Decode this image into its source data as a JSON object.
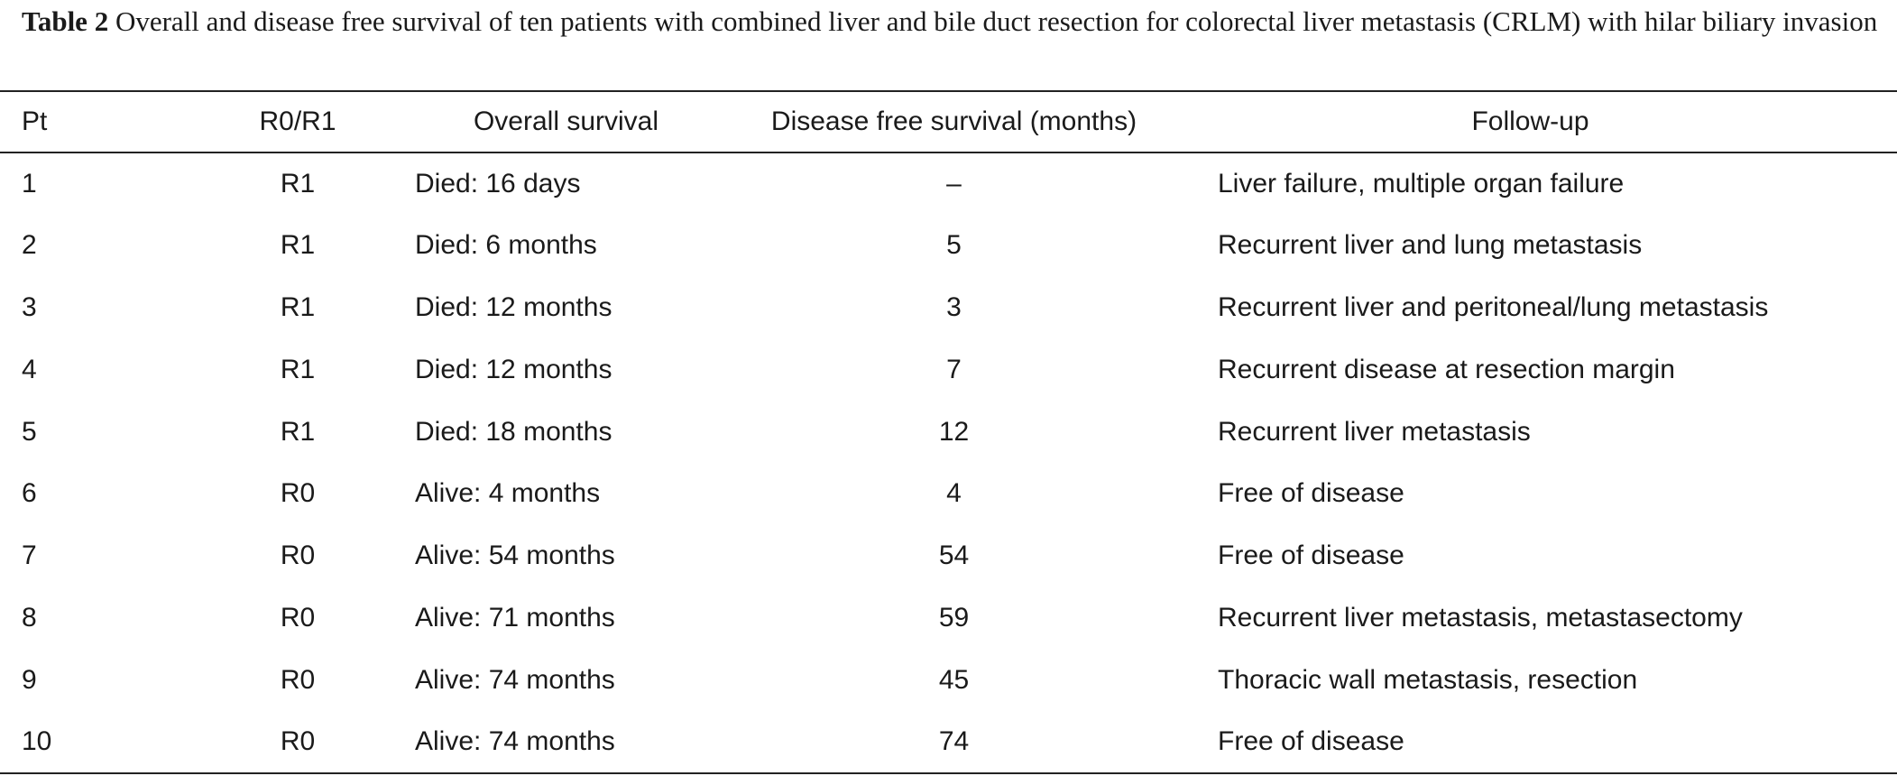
{
  "caption": {
    "label": "Table 2",
    "text": "Overall and disease free survival of ten patients with combined liver and bile duct resection for colorectal liver metastasis (CRLM) with hilar biliary invasion"
  },
  "columns": [
    "Pt",
    "R0/R1",
    "Overall survival",
    "Disease free survival (months)",
    "Follow-up"
  ],
  "rows": [
    {
      "pt": "1",
      "r": "R1",
      "os": "Died: 16 days",
      "dfs": "–",
      "followup": "Liver failure, multiple organ failure"
    },
    {
      "pt": "2",
      "r": "R1",
      "os": "Died: 6 months",
      "dfs": "5",
      "followup": "Recurrent liver and lung metastasis"
    },
    {
      "pt": "3",
      "r": "R1",
      "os": "Died: 12 months",
      "dfs": "3",
      "followup": "Recurrent liver and peritoneal/lung metastasis"
    },
    {
      "pt": "4",
      "r": "R1",
      "os": "Died: 12 months",
      "dfs": "7",
      "followup": "Recurrent disease at resection margin"
    },
    {
      "pt": "5",
      "r": "R1",
      "os": "Died: 18 months",
      "dfs": "12",
      "followup": "Recurrent liver metastasis"
    },
    {
      "pt": "6",
      "r": "R0",
      "os": "Alive: 4 months",
      "dfs": "4",
      "followup": "Free of disease"
    },
    {
      "pt": "7",
      "r": "R0",
      "os": "Alive: 54 months",
      "dfs": "54",
      "followup": "Free of disease"
    },
    {
      "pt": "8",
      "r": "R0",
      "os": "Alive: 71 months",
      "dfs": "59",
      "followup": "Recurrent liver metastasis, metastasectomy"
    },
    {
      "pt": "9",
      "r": "R0",
      "os": "Alive: 74 months",
      "dfs": "45",
      "followup": "Thoracic wall metastasis, resection"
    },
    {
      "pt": "10",
      "r": "R0",
      "os": "Alive: 74 months",
      "dfs": "74",
      "followup": "Free of disease"
    }
  ]
}
